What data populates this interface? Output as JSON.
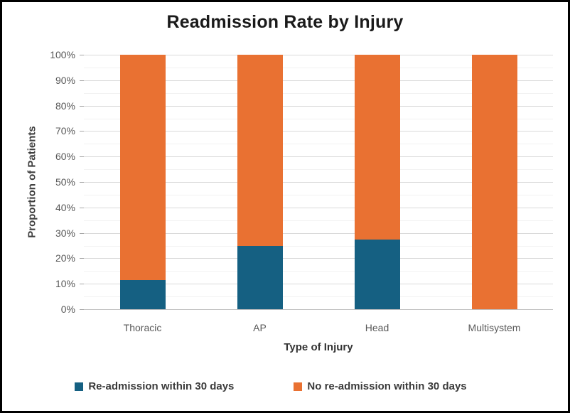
{
  "chart_data": {
    "type": "bar",
    "stacked": true,
    "title": "Readmission Rate by Injury",
    "xlabel": "Type of Injury",
    "ylabel": "Proportion of Patients",
    "categories": [
      "Thoracic",
      "AP",
      "Head",
      "Multisystem"
    ],
    "series": [
      {
        "name": "Re-admission within 30 days",
        "color": "#156082",
        "values": [
          11.5,
          25,
          27.5,
          0
        ]
      },
      {
        "name": "No re-admission within 30 days",
        "color": "#E97132",
        "values": [
          88.5,
          75,
          72.5,
          100
        ]
      }
    ],
    "ylim": [
      0,
      100
    ],
    "y_major_step": 10,
    "y_minor_step": 5,
    "y_tick_format": "percent",
    "y_tick_labels": [
      "0%",
      "10%",
      "20%",
      "30%",
      "40%",
      "50%",
      "60%",
      "70%",
      "80%",
      "90%",
      "100%"
    ],
    "grid": "horizontal major and minor gridlines",
    "legend_position": "bottom"
  },
  "colors": {
    "series_readmission": "#156082",
    "series_no_readmission": "#E97132",
    "major_gridline": "#d9d9d9",
    "minor_gridline": "#f2f2f2",
    "axis_line": "#bfbfbf",
    "tick_text": "#595959",
    "title_text": "#1a1a1a",
    "outer_border": "#000000"
  }
}
